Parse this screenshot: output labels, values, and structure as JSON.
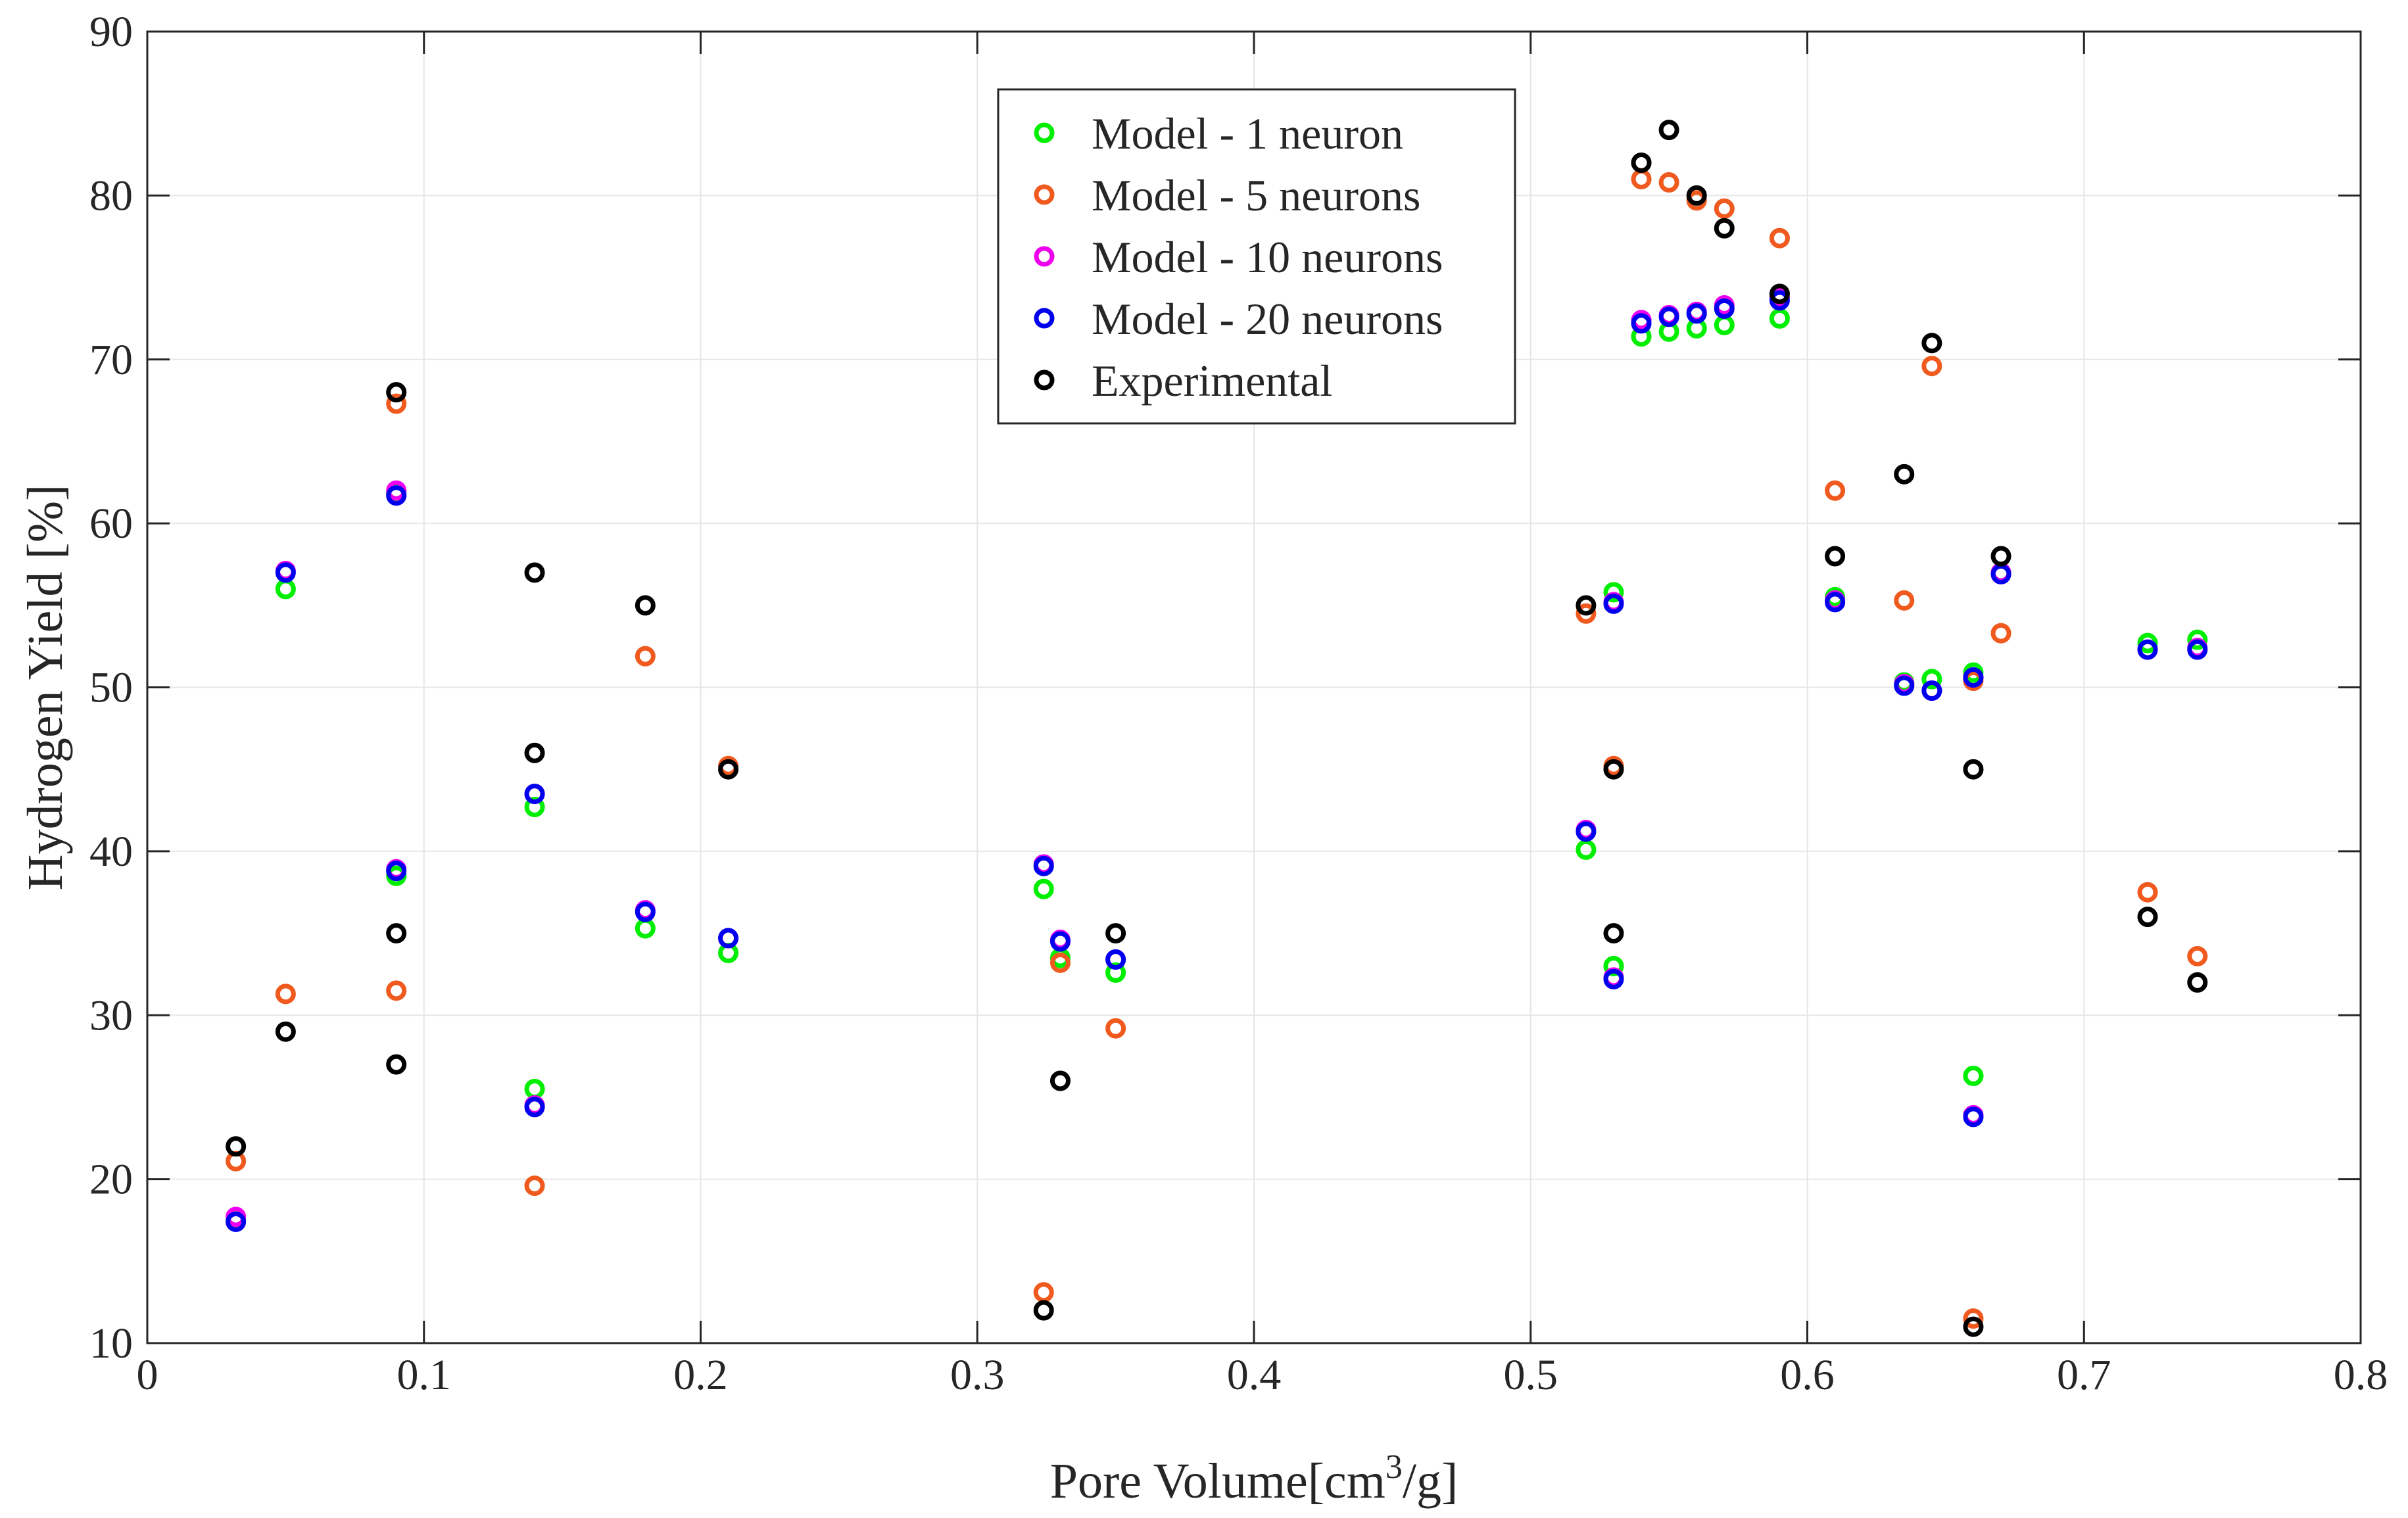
{
  "chart_data": {
    "type": "scatter",
    "title": "",
    "xlabel": "Pore Volume[cm",
    "xlabel_superscript": "3",
    "xlabel_suffix": "/g]",
    "ylabel": "Hydrogen Yield [%]",
    "xlim": [
      0,
      0.8
    ],
    "ylim": [
      10,
      90
    ],
    "xticks": [
      0,
      0.1,
      0.2,
      0.3,
      0.4,
      0.5,
      0.6,
      0.7,
      0.8
    ],
    "xtick_labels": [
      "0",
      "0.1",
      "0.2",
      "0.3",
      "0.4",
      "0.5",
      "0.6",
      "0.7",
      "0.8"
    ],
    "yticks": [
      10,
      20,
      30,
      40,
      50,
      60,
      70,
      80,
      90
    ],
    "ytick_labels": [
      "10",
      "20",
      "30",
      "40",
      "50",
      "60",
      "70",
      "80",
      "90"
    ],
    "grid": true,
    "legend_position": "top-center",
    "series": [
      {
        "name": "Model - 1 neuron",
        "color": "#00ee00",
        "points": [
          [
            0.032,
            17.5
          ],
          [
            0.05,
            56.0
          ],
          [
            0.09,
            61.8
          ],
          [
            0.09,
            38.5
          ],
          [
            0.14,
            42.7
          ],
          [
            0.14,
            25.5
          ],
          [
            0.18,
            35.3
          ],
          [
            0.21,
            33.8
          ],
          [
            0.324,
            37.7
          ],
          [
            0.33,
            33.5
          ],
          [
            0.35,
            32.6
          ],
          [
            0.52,
            40.1
          ],
          [
            0.53,
            55.8
          ],
          [
            0.53,
            33.0
          ],
          [
            0.54,
            71.4
          ],
          [
            0.55,
            71.7
          ],
          [
            0.56,
            71.9
          ],
          [
            0.57,
            72.1
          ],
          [
            0.59,
            72.5
          ],
          [
            0.61,
            55.5
          ],
          [
            0.635,
            50.3
          ],
          [
            0.645,
            50.5
          ],
          [
            0.66,
            50.9
          ],
          [
            0.66,
            26.3
          ],
          [
            0.67,
            57.0
          ],
          [
            0.723,
            52.7
          ],
          [
            0.741,
            52.9
          ]
        ]
      },
      {
        "name": "Model - 5 neurons",
        "color": "#f05a1e",
        "points": [
          [
            0.032,
            21.1
          ],
          [
            0.05,
            31.3
          ],
          [
            0.09,
            67.3
          ],
          [
            0.09,
            31.5
          ],
          [
            0.14,
            19.6
          ],
          [
            0.18,
            51.9
          ],
          [
            0.21,
            45.2
          ],
          [
            0.324,
            13.1
          ],
          [
            0.33,
            33.2
          ],
          [
            0.35,
            29.2
          ],
          [
            0.52,
            54.5
          ],
          [
            0.53,
            45.2
          ],
          [
            0.54,
            81.0
          ],
          [
            0.55,
            80.8
          ],
          [
            0.56,
            79.7
          ],
          [
            0.57,
            79.2
          ],
          [
            0.59,
            77.4
          ],
          [
            0.61,
            62.0
          ],
          [
            0.635,
            55.3
          ],
          [
            0.645,
            69.6
          ],
          [
            0.66,
            50.4
          ],
          [
            0.66,
            11.5
          ],
          [
            0.67,
            53.3
          ],
          [
            0.723,
            37.5
          ],
          [
            0.741,
            33.6
          ]
        ]
      },
      {
        "name": "Model - 10 neurons",
        "color": "#ee00ee",
        "points": [
          [
            0.032,
            17.7
          ],
          [
            0.05,
            57.1
          ],
          [
            0.09,
            62.0
          ],
          [
            0.09,
            38.9
          ],
          [
            0.14,
            43.5
          ],
          [
            0.14,
            24.5
          ],
          [
            0.18,
            36.4
          ],
          [
            0.21,
            34.7
          ],
          [
            0.324,
            39.2
          ],
          [
            0.33,
            34.6
          ],
          [
            0.35,
            33.4
          ],
          [
            0.52,
            41.3
          ],
          [
            0.53,
            55.2
          ],
          [
            0.53,
            32.3
          ],
          [
            0.54,
            72.4
          ],
          [
            0.55,
            72.7
          ],
          [
            0.56,
            72.9
          ],
          [
            0.57,
            73.3
          ],
          [
            0.59,
            73.8
          ],
          [
            0.61,
            55.3
          ],
          [
            0.635,
            50.2
          ],
          [
            0.645,
            49.8
          ],
          [
            0.66,
            50.6
          ],
          [
            0.66,
            23.9
          ],
          [
            0.67,
            57.0
          ],
          [
            0.723,
            52.3
          ],
          [
            0.741,
            52.4
          ]
        ]
      },
      {
        "name": "Model - 20 neurons",
        "color": "#0000ee",
        "points": [
          [
            0.032,
            17.4
          ],
          [
            0.05,
            57.0
          ],
          [
            0.09,
            61.7
          ],
          [
            0.09,
            38.8
          ],
          [
            0.14,
            43.5
          ],
          [
            0.14,
            24.4
          ],
          [
            0.18,
            36.3
          ],
          [
            0.21,
            34.7
          ],
          [
            0.324,
            39.1
          ],
          [
            0.33,
            34.5
          ],
          [
            0.35,
            33.4
          ],
          [
            0.52,
            41.2
          ],
          [
            0.53,
            55.1
          ],
          [
            0.53,
            32.2
          ],
          [
            0.54,
            72.2
          ],
          [
            0.55,
            72.6
          ],
          [
            0.56,
            72.8
          ],
          [
            0.57,
            73.1
          ],
          [
            0.59,
            73.6
          ],
          [
            0.61,
            55.2
          ],
          [
            0.635,
            50.1
          ],
          [
            0.645,
            49.8
          ],
          [
            0.66,
            50.6
          ],
          [
            0.66,
            23.8
          ],
          [
            0.67,
            56.9
          ],
          [
            0.723,
            52.3
          ],
          [
            0.741,
            52.3
          ]
        ]
      },
      {
        "name": "Experimental",
        "color": "#000000",
        "points": [
          [
            0.032,
            22.0
          ],
          [
            0.05,
            29.0
          ],
          [
            0.09,
            68.0
          ],
          [
            0.09,
            35.0
          ],
          [
            0.09,
            27.0
          ],
          [
            0.14,
            57.0
          ],
          [
            0.14,
            46.0
          ],
          [
            0.18,
            55.0
          ],
          [
            0.21,
            45.0
          ],
          [
            0.324,
            12.0
          ],
          [
            0.33,
            26.0
          ],
          [
            0.35,
            35.0
          ],
          [
            0.52,
            55.0
          ],
          [
            0.53,
            45.0
          ],
          [
            0.53,
            35.0
          ],
          [
            0.54,
            82.0
          ],
          [
            0.55,
            84.0
          ],
          [
            0.56,
            80.0
          ],
          [
            0.57,
            78.0
          ],
          [
            0.59,
            74.0
          ],
          [
            0.61,
            58.0
          ],
          [
            0.635,
            63.0
          ],
          [
            0.645,
            71.0
          ],
          [
            0.66,
            45.0
          ],
          [
            0.66,
            11.0
          ],
          [
            0.67,
            58.0
          ],
          [
            0.723,
            36.0
          ],
          [
            0.741,
            32.0
          ]
        ]
      }
    ]
  }
}
